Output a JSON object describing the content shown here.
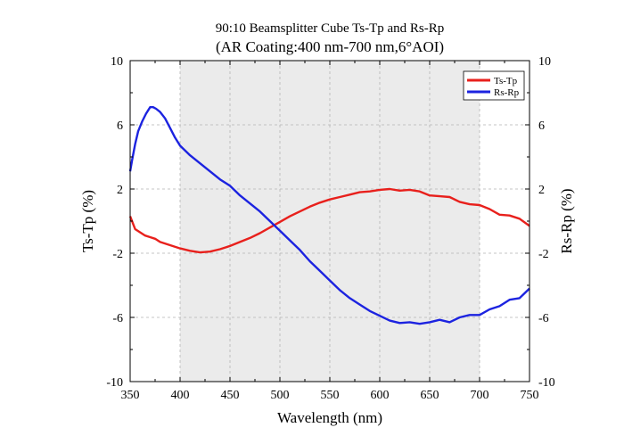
{
  "chart_data": {
    "type": "line",
    "title": "90:10 Beamsplitter Cube Ts-Tp and Rs-Rp",
    "subtitle": "(AR Coating:400 nm-700 nm,6°AOI)",
    "xlabel": "Wavelength (nm)",
    "ylabel_left": "Ts-Tp (%)",
    "ylabel_right": "Rs-Rp (%)",
    "xlim": [
      350,
      750
    ],
    "ylim": [
      -10,
      10
    ],
    "xticks": [
      350,
      400,
      450,
      500,
      550,
      600,
      650,
      700,
      750
    ],
    "yticks": [
      -10,
      -6,
      -2,
      2,
      6,
      10
    ],
    "grid": true,
    "legend_position": "top-right",
    "shaded_region": {
      "from": 400,
      "to": 700,
      "color": "#ebebeb"
    },
    "series": [
      {
        "name": "Ts-Tp",
        "color": "#e8201c",
        "x": [
          350,
          355,
          360,
          365,
          370,
          375,
          380,
          390,
          400,
          410,
          420,
          430,
          440,
          450,
          460,
          470,
          480,
          490,
          500,
          510,
          520,
          530,
          540,
          550,
          560,
          570,
          580,
          590,
          600,
          610,
          620,
          630,
          640,
          650,
          660,
          670,
          680,
          690,
          700,
          710,
          720,
          730,
          740,
          750
        ],
        "y": [
          0.3,
          -0.5,
          -0.7,
          -0.9,
          -1.0,
          -1.1,
          -1.3,
          -1.5,
          -1.7,
          -1.85,
          -1.95,
          -1.9,
          -1.75,
          -1.55,
          -1.3,
          -1.05,
          -0.75,
          -0.4,
          -0.05,
          0.3,
          0.6,
          0.9,
          1.15,
          1.35,
          1.5,
          1.65,
          1.8,
          1.85,
          1.95,
          2.0,
          1.9,
          1.95,
          1.85,
          1.6,
          1.55,
          1.5,
          1.2,
          1.05,
          1.0,
          0.75,
          0.4,
          0.35,
          0.15,
          -0.3
        ]
      },
      {
        "name": "Rs-Rp",
        "color": "#1c23e0",
        "x": [
          350,
          352,
          355,
          358,
          362,
          366,
          370,
          373,
          376,
          380,
          385,
          390,
          395,
          400,
          410,
          420,
          430,
          440,
          450,
          460,
          470,
          480,
          490,
          500,
          510,
          520,
          530,
          540,
          550,
          560,
          570,
          580,
          590,
          600,
          610,
          620,
          630,
          640,
          650,
          660,
          670,
          680,
          690,
          700,
          710,
          720,
          730,
          740,
          750
        ],
        "y": [
          3.1,
          3.8,
          4.8,
          5.6,
          6.2,
          6.7,
          7.1,
          7.1,
          7.0,
          6.8,
          6.4,
          5.8,
          5.2,
          4.7,
          4.1,
          3.6,
          3.1,
          2.6,
          2.2,
          1.6,
          1.1,
          0.6,
          0.0,
          -0.6,
          -1.2,
          -1.8,
          -2.5,
          -3.1,
          -3.7,
          -4.3,
          -4.8,
          -5.2,
          -5.6,
          -5.9,
          -6.2,
          -6.35,
          -6.3,
          -6.4,
          -6.3,
          -6.15,
          -6.3,
          -6.0,
          -5.85,
          -5.85,
          -5.5,
          -5.3,
          -4.9,
          -4.8,
          -4.2
        ]
      }
    ]
  }
}
